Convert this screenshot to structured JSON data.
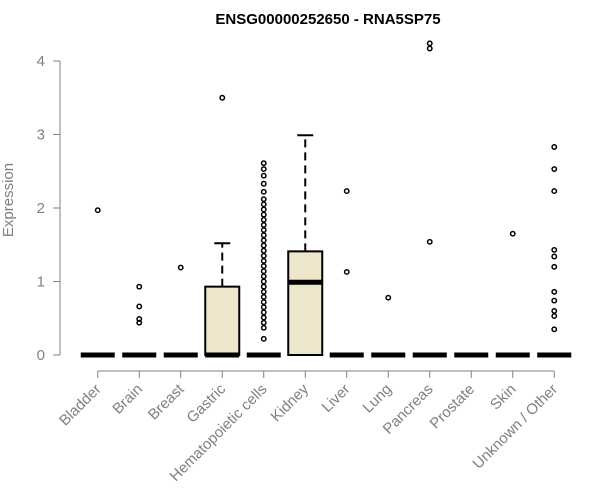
{
  "chart_data": {
    "type": "box",
    "title": "ENSG00000252650 - RNA5SP75",
    "xlabel": "",
    "ylabel": "Expression",
    "ylim": [
      0,
      4.3
    ],
    "yticks": [
      0,
      1,
      2,
      3,
      4
    ],
    "categories": [
      "Bladder",
      "Brain",
      "Breast",
      "Gastric",
      "Hematopoietic cells",
      "Kidney",
      "Liver",
      "Lung",
      "Pancreas",
      "Prostate",
      "Skin",
      "Unknown / Other"
    ],
    "boxes": [
      {
        "q1": 0,
        "median": 0,
        "q3": 0,
        "whisker_low": 0,
        "whisker_high": 0,
        "outliers": [
          1.97
        ]
      },
      {
        "q1": 0,
        "median": 0,
        "q3": 0,
        "whisker_low": 0,
        "whisker_high": 0,
        "outliers": [
          0.93,
          0.66,
          0.49,
          0.44
        ]
      },
      {
        "q1": 0,
        "median": 0,
        "q3": 0,
        "whisker_low": 0,
        "whisker_high": 0,
        "outliers": [
          1.19
        ]
      },
      {
        "q1": 0,
        "median": 0,
        "q3": 0.93,
        "whisker_low": 0,
        "whisker_high": 1.52,
        "outliers": [
          3.5
        ]
      },
      {
        "q1": 0,
        "median": 0,
        "q3": 0,
        "whisker_low": 0,
        "whisker_high": 0,
        "outliers": [
          2.61,
          2.53,
          2.44,
          2.33,
          2.22,
          2.12,
          2.05,
          1.98,
          1.91,
          1.84,
          1.77,
          1.7,
          1.63,
          1.56,
          1.49,
          1.42,
          1.35,
          1.28,
          1.21,
          1.14,
          1.07,
          1.0,
          0.93,
          0.86,
          0.79,
          0.72,
          0.65,
          0.58,
          0.51,
          0.44,
          0.37,
          0.22
        ]
      },
      {
        "q1": 0,
        "median": 0.99,
        "q3": 1.41,
        "whisker_low": 0,
        "whisker_high": 2.99,
        "outliers": []
      },
      {
        "q1": 0,
        "median": 0,
        "q3": 0,
        "whisker_low": 0,
        "whisker_high": 0,
        "outliers": [
          2.23,
          1.13
        ]
      },
      {
        "q1": 0,
        "median": 0,
        "q3": 0,
        "whisker_low": 0,
        "whisker_high": 0,
        "outliers": [
          0.78
        ]
      },
      {
        "q1": 0,
        "median": 0,
        "q3": 0,
        "whisker_low": 0,
        "whisker_high": 0,
        "outliers": [
          4.24,
          4.17,
          1.54
        ]
      },
      {
        "q1": 0,
        "median": 0,
        "q3": 0,
        "whisker_low": 0,
        "whisker_high": 0,
        "outliers": []
      },
      {
        "q1": 0,
        "median": 0,
        "q3": 0,
        "whisker_low": 0,
        "whisker_high": 0,
        "outliers": [
          1.65
        ]
      },
      {
        "q1": 0,
        "median": 0,
        "q3": 0,
        "whisker_low": 0,
        "whisker_high": 0,
        "outliers": [
          2.83,
          2.53,
          2.23,
          1.43,
          1.34,
          1.2,
          0.86,
          0.74,
          0.6,
          0.53,
          0.35
        ]
      }
    ],
    "grid": false,
    "legend": "none",
    "box_fill": "#ede6ca",
    "box_stroke": "#000000",
    "axis_color": "#808080"
  }
}
